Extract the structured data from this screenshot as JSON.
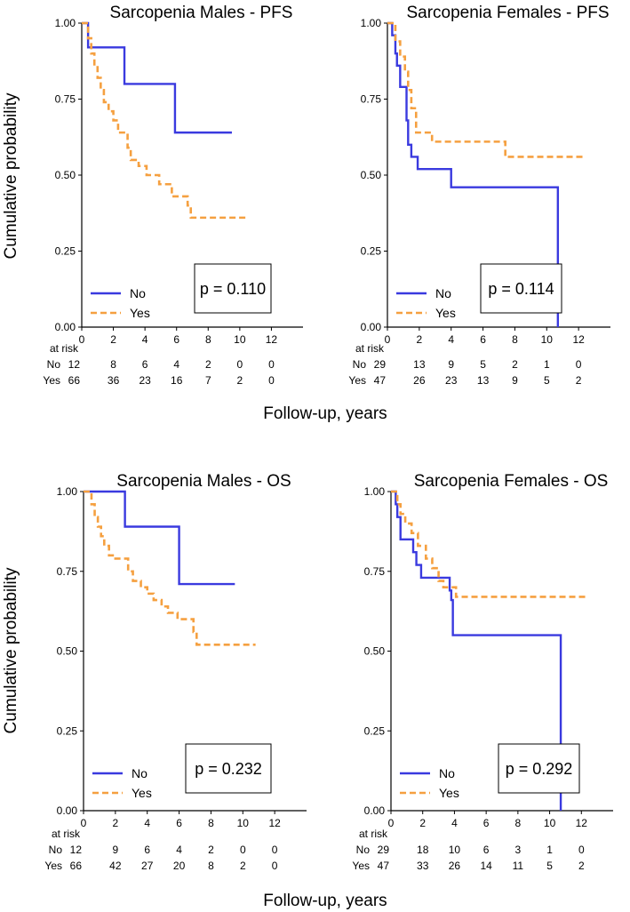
{
  "figure": {
    "ylabel": "Cumulative probability",
    "xlabel": "Follow-up, years",
    "colors": {
      "No": "#3a3adf",
      "Yes": "#f5a040"
    }
  },
  "chart_data": [
    {
      "type": "line",
      "title": "Sarcopenia Males - PFS",
      "xlabel": "Follow-up, years",
      "ylabel": "Cumulative probability",
      "xlim": [
        0,
        14
      ],
      "ylim": [
        0,
        1
      ],
      "xticks": [
        "0",
        "2",
        "4",
        "6",
        "8",
        "10",
        "12"
      ],
      "yticks": [
        "0.00",
        "0.25",
        "0.50",
        "0.75",
        "1.00"
      ],
      "series": [
        {
          "name": "No",
          "step": true,
          "points": [
            [
              0,
              1
            ],
            [
              0.4,
              0.92
            ],
            [
              2.7,
              0.8
            ],
            [
              5.9,
              0.64
            ],
            [
              9.5,
              0.64
            ]
          ]
        },
        {
          "name": "Yes",
          "step": true,
          "points": [
            [
              0,
              1
            ],
            [
              0.4,
              0.95
            ],
            [
              0.6,
              0.9
            ],
            [
              0.8,
              0.86
            ],
            [
              1.0,
              0.82
            ],
            [
              1.2,
              0.78
            ],
            [
              1.4,
              0.74
            ],
            [
              1.7,
              0.71
            ],
            [
              2.0,
              0.68
            ],
            [
              2.3,
              0.64
            ],
            [
              2.9,
              0.59
            ],
            [
              3.1,
              0.55
            ],
            [
              3.6,
              0.53
            ],
            [
              4.1,
              0.5
            ],
            [
              4.9,
              0.47
            ],
            [
              5.7,
              0.43
            ],
            [
              6.7,
              0.4
            ],
            [
              6.9,
              0.36
            ],
            [
              10.5,
              0.36
            ]
          ]
        }
      ],
      "legend": [
        "No",
        "Yes"
      ],
      "p_value": "p = 0.110",
      "risk_label": "at risk",
      "risk_table": [
        {
          "group": "No",
          "counts": [
            "12",
            "8",
            "6",
            "4",
            "2",
            "0",
            "0"
          ]
        },
        {
          "group": "Yes",
          "counts": [
            "66",
            "36",
            "23",
            "16",
            "7",
            "2",
            "0"
          ]
        }
      ]
    },
    {
      "type": "line",
      "title": "Sarcopenia Females - PFS",
      "xlabel": "Follow-up, years",
      "ylabel": "Cumulative probability",
      "xlim": [
        0,
        14
      ],
      "ylim": [
        0,
        1
      ],
      "xticks": [
        "0",
        "2",
        "4",
        "6",
        "8",
        "10",
        "12"
      ],
      "yticks": [
        "0.00",
        "0.25",
        "0.50",
        "0.75",
        "1.00"
      ],
      "series": [
        {
          "name": "No",
          "step": true,
          "points": [
            [
              0,
              1
            ],
            [
              0.3,
              0.96
            ],
            [
              0.5,
              0.9
            ],
            [
              0.6,
              0.86
            ],
            [
              0.8,
              0.79
            ],
            [
              1.2,
              0.68
            ],
            [
              1.3,
              0.6
            ],
            [
              1.5,
              0.56
            ],
            [
              1.9,
              0.52
            ],
            [
              4.0,
              0.46
            ],
            [
              10.7,
              0.0
            ]
          ]
        },
        {
          "name": "Yes",
          "step": true,
          "points": [
            [
              0,
              1
            ],
            [
              0.5,
              0.94
            ],
            [
              0.8,
              0.89
            ],
            [
              1.1,
              0.84
            ],
            [
              1.3,
              0.78
            ],
            [
              1.5,
              0.72
            ],
            [
              1.8,
              0.64
            ],
            [
              2.8,
              0.61
            ],
            [
              7.4,
              0.56
            ],
            [
              12.3,
              0.56
            ]
          ]
        }
      ],
      "legend": [
        "No",
        "Yes"
      ],
      "p_value": "p = 0.114",
      "risk_label": "at risk",
      "risk_table": [
        {
          "group": "No",
          "counts": [
            "29",
            "13",
            "9",
            "5",
            "2",
            "1",
            "0"
          ]
        },
        {
          "group": "Yes",
          "counts": [
            "47",
            "26",
            "23",
            "13",
            "9",
            "5",
            "2"
          ]
        }
      ]
    },
    {
      "type": "line",
      "title": "Sarcopenia Males - OS",
      "xlabel": "Follow-up, years",
      "ylabel": "Cumulative probability",
      "xlim": [
        0,
        14
      ],
      "ylim": [
        0,
        1
      ],
      "xticks": [
        "0",
        "2",
        "4",
        "6",
        "8",
        "10",
        "12"
      ],
      "yticks": [
        "0.00",
        "0.25",
        "0.50",
        "0.75",
        "1.00"
      ],
      "series": [
        {
          "name": "No",
          "step": true,
          "points": [
            [
              0,
              1
            ],
            [
              2.6,
              0.89
            ],
            [
              6.0,
              0.71
            ],
            [
              9.5,
              0.71
            ]
          ]
        },
        {
          "name": "Yes",
          "step": true,
          "points": [
            [
              0,
              1
            ],
            [
              0.5,
              0.96
            ],
            [
              0.7,
              0.92
            ],
            [
              0.9,
              0.89
            ],
            [
              1.1,
              0.86
            ],
            [
              1.3,
              0.83
            ],
            [
              1.6,
              0.8
            ],
            [
              2.0,
              0.79
            ],
            [
              2.8,
              0.75
            ],
            [
              3.1,
              0.72
            ],
            [
              3.6,
              0.7
            ],
            [
              4.0,
              0.68
            ],
            [
              4.4,
              0.66
            ],
            [
              4.9,
              0.64
            ],
            [
              5.3,
              0.62
            ],
            [
              5.9,
              0.6
            ],
            [
              6.9,
              0.56
            ],
            [
              7.1,
              0.52
            ],
            [
              10.8,
              0.52
            ]
          ]
        }
      ],
      "legend": [
        "No",
        "Yes"
      ],
      "p_value": "p = 0.232",
      "risk_label": "at risk",
      "risk_table": [
        {
          "group": "No",
          "counts": [
            "12",
            "9",
            "6",
            "4",
            "2",
            "0",
            "0"
          ]
        },
        {
          "group": "Yes",
          "counts": [
            "66",
            "42",
            "27",
            "20",
            "8",
            "2",
            "0"
          ]
        }
      ]
    },
    {
      "type": "line",
      "title": "Sarcopenia Females - OS",
      "xlabel": "Follow-up, years",
      "ylabel": "Cumulative probability",
      "xlim": [
        0,
        14
      ],
      "ylim": [
        0,
        1
      ],
      "xticks": [
        "0",
        "2",
        "4",
        "6",
        "8",
        "10",
        "12"
      ],
      "yticks": [
        "0.00",
        "0.25",
        "0.50",
        "0.75",
        "1.00"
      ],
      "series": [
        {
          "name": "No",
          "step": true,
          "points": [
            [
              0,
              1
            ],
            [
              0.3,
              0.96
            ],
            [
              0.4,
              0.92
            ],
            [
              0.6,
              0.85
            ],
            [
              1.4,
              0.81
            ],
            [
              1.6,
              0.77
            ],
            [
              1.9,
              0.73
            ],
            [
              3.7,
              0.69
            ],
            [
              3.8,
              0.66
            ],
            [
              3.9,
              0.55
            ],
            [
              10.7,
              0.0
            ]
          ]
        },
        {
          "name": "Yes",
          "step": true,
          "points": [
            [
              0,
              1
            ],
            [
              0.4,
              0.96
            ],
            [
              0.6,
              0.93
            ],
            [
              0.9,
              0.9
            ],
            [
              1.3,
              0.87
            ],
            [
              1.7,
              0.83
            ],
            [
              2.2,
              0.79
            ],
            [
              2.6,
              0.76
            ],
            [
              3.0,
              0.72
            ],
            [
              3.3,
              0.7
            ],
            [
              4.1,
              0.67
            ],
            [
              12.3,
              0.67
            ]
          ]
        }
      ],
      "legend": [
        "No",
        "Yes"
      ],
      "p_value": "p = 0.292",
      "risk_label": "at risk",
      "risk_table": [
        {
          "group": "No",
          "counts": [
            "29",
            "18",
            "10",
            "6",
            "3",
            "1",
            "0"
          ]
        },
        {
          "group": "Yes",
          "counts": [
            "47",
            "33",
            "26",
            "14",
            "11",
            "5",
            "2"
          ]
        }
      ]
    }
  ]
}
